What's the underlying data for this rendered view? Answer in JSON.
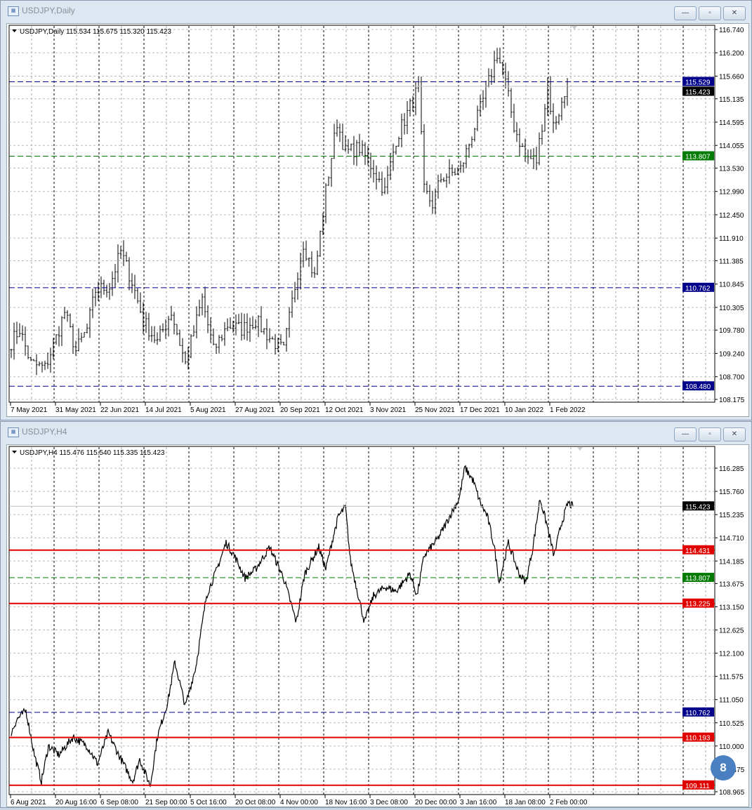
{
  "windows": [
    {
      "title": "USDJPY,Daily",
      "info": "USDJPY,Daily  115.534 115.675 115.320 115.423",
      "buttons": {
        "minimize": "—",
        "restore": "▫",
        "close": "✕"
      },
      "chart_type": "bar",
      "y_ticks": [
        "116.740",
        "116.200",
        "115.660",
        "115.135",
        "114.595",
        "114.055",
        "113.530",
        "112.990",
        "112.450",
        "111.910",
        "111.385",
        "110.845",
        "110.305",
        "109.780",
        "109.240",
        "108.700",
        "108.175"
      ],
      "ylim": [
        108.175,
        116.74
      ],
      "x_ticks": [
        "7 May 2021",
        "31 May 2021",
        "22 Jun 2021",
        "14 Jul 2021",
        "5 Aug 2021",
        "27 Aug 2021",
        "20 Sep 2021",
        "12 Oct 2021",
        "3 Nov 2021",
        "25 Nov 2021",
        "17 Dec 2021",
        "10 Jan 2022",
        "1 Feb 2022"
      ],
      "current_price": {
        "value": "115.423",
        "color": "#000000"
      },
      "levels": [
        {
          "value": "115.529",
          "color": "#00008b",
          "style": "dashed"
        },
        {
          "value": "113.807",
          "color": "#007a00",
          "style": "dashed"
        },
        {
          "value": "110.762",
          "color": "#00008b",
          "style": "dashed"
        },
        {
          "value": "108.480",
          "color": "#00008b",
          "style": "dashed"
        }
      ],
      "price_path": [
        [
          0,
          109.5
        ],
        [
          3,
          109.8
        ],
        [
          7,
          109.0
        ],
        [
          12,
          108.9
        ],
        [
          16,
          109.6
        ],
        [
          19,
          110.2
        ],
        [
          23,
          109.3
        ],
        [
          27,
          109.8
        ],
        [
          30,
          110.7
        ],
        [
          35,
          110.8
        ],
        [
          39,
          111.6
        ],
        [
          43,
          110.9
        ],
        [
          47,
          110.0
        ],
        [
          52,
          109.5
        ],
        [
          57,
          110.2
        ],
        [
          62,
          109.0
        ],
        [
          68,
          110.5
        ],
        [
          72,
          109.3
        ],
        [
          77,
          109.9
        ],
        [
          82,
          109.8
        ],
        [
          87,
          110.0
        ],
        [
          92,
          109.6
        ],
        [
          97,
          109.3
        ],
        [
          101,
          110.8
        ],
        [
          104,
          111.8
        ],
        [
          108,
          111.0
        ],
        [
          112,
          113.0
        ],
        [
          116,
          114.6
        ],
        [
          119,
          113.9
        ],
        [
          124,
          114.0
        ],
        [
          129,
          113.5
        ],
        [
          133,
          113.0
        ],
        [
          137,
          114.2
        ],
        [
          141,
          114.8
        ],
        [
          145,
          115.4
        ],
        [
          147,
          113.0
        ],
        [
          150,
          112.7
        ],
        [
          153,
          113.3
        ],
        [
          160,
          113.5
        ],
        [
          164,
          114.3
        ],
        [
          169,
          115.3
        ],
        [
          173,
          116.2
        ],
        [
          176,
          115.5
        ],
        [
          179,
          114.5
        ],
        [
          183,
          113.8
        ],
        [
          187,
          113.7
        ],
        [
          191,
          115.4
        ],
        [
          193,
          114.5
        ],
        [
          196,
          115.0
        ],
        [
          198,
          115.42
        ]
      ]
    },
    {
      "title": "USDJPY,H4",
      "info": "USDJPY,H4  115.476 115.540 115.335 115.423",
      "buttons": {
        "minimize": "—",
        "restore": "▫",
        "close": "✕"
      },
      "chart_type": "line",
      "y_ticks": [
        "116.285",
        "115.760",
        "115.235",
        "114.710",
        "114.185",
        "113.675",
        "113.150",
        "112.625",
        "112.100",
        "111.575",
        "111.050",
        "110.525",
        "110.000",
        "109.475",
        "108.965"
      ],
      "ylim": [
        108.965,
        116.285
      ],
      "x_ticks": [
        "6 Aug 2021",
        "20 Aug 16:00",
        "6 Sep 08:00",
        "21 Sep 00:00",
        "5 Oct 16:00",
        "20 Oct 08:00",
        "4 Nov 00:00",
        "18 Nov 16:00",
        "3 Dec 08:00",
        "20 Dec 00:00",
        "3 Jan 16:00",
        "18 Jan 08:00",
        "2 Feb 00:00"
      ],
      "current_price": {
        "value": "115.423",
        "color": "#000000"
      },
      "levels": [
        {
          "value": "114.431",
          "color": "#e00000",
          "style": "solid"
        },
        {
          "value": "113.807",
          "color": "#007a00",
          "style": "dashed"
        },
        {
          "value": "113.225",
          "color": "#e00000",
          "style": "solid"
        },
        {
          "value": "110.762",
          "color": "#00008b",
          "style": "dashed"
        },
        {
          "value": "110.193",
          "color": "#e00000",
          "style": "solid"
        },
        {
          "value": "109.111",
          "color": "#e00000",
          "style": "solid"
        }
      ],
      "price_path": [
        [
          0,
          110.3
        ],
        [
          8,
          110.6
        ],
        [
          21,
          110.8
        ],
        [
          33,
          109.8
        ],
        [
          43,
          109.2
        ],
        [
          53,
          110.0
        ],
        [
          68,
          109.8
        ],
        [
          88,
          110.2
        ],
        [
          108,
          110.0
        ],
        [
          123,
          109.6
        ],
        [
          138,
          110.3
        ],
        [
          153,
          109.8
        ],
        [
          173,
          109.2
        ],
        [
          183,
          109.7
        ],
        [
          198,
          109.1
        ],
        [
          208,
          110.2
        ],
        [
          223,
          111.0
        ],
        [
          233,
          111.9
        ],
        [
          248,
          110.9
        ],
        [
          263,
          111.8
        ],
        [
          278,
          113.4
        ],
        [
          293,
          114.0
        ],
        [
          306,
          114.6
        ],
        [
          318,
          114.3
        ],
        [
          333,
          113.8
        ],
        [
          348,
          114.0
        ],
        [
          368,
          114.5
        ],
        [
          388,
          113.8
        ],
        [
          406,
          112.8
        ],
        [
          418,
          113.9
        ],
        [
          438,
          114.5
        ],
        [
          448,
          114.0
        ],
        [
          458,
          114.7
        ],
        [
          466,
          115.2
        ],
        [
          476,
          115.4
        ],
        [
          483,
          114.2
        ],
        [
          493,
          113.5
        ],
        [
          503,
          112.8
        ],
        [
          516,
          113.4
        ],
        [
          533,
          113.6
        ],
        [
          548,
          113.5
        ],
        [
          568,
          113.9
        ],
        [
          578,
          113.4
        ],
        [
          588,
          114.3
        ],
        [
          608,
          114.7
        ],
        [
          628,
          115.3
        ],
        [
          638,
          115.6
        ],
        [
          646,
          116.3
        ],
        [
          658,
          116.0
        ],
        [
          668,
          115.5
        ],
        [
          678,
          115.2
        ],
        [
          688,
          114.5
        ],
        [
          695,
          113.7
        ],
        [
          708,
          114.6
        ],
        [
          723,
          113.9
        ],
        [
          733,
          113.7
        ],
        [
          743,
          114.5
        ],
        [
          753,
          115.6
        ],
        [
          763,
          115.0
        ],
        [
          773,
          114.3
        ],
        [
          783,
          115.0
        ],
        [
          793,
          115.5
        ],
        [
          800,
          115.42
        ]
      ],
      "annotation": "8",
      "annotation_color": "#4a7fc1"
    }
  ]
}
